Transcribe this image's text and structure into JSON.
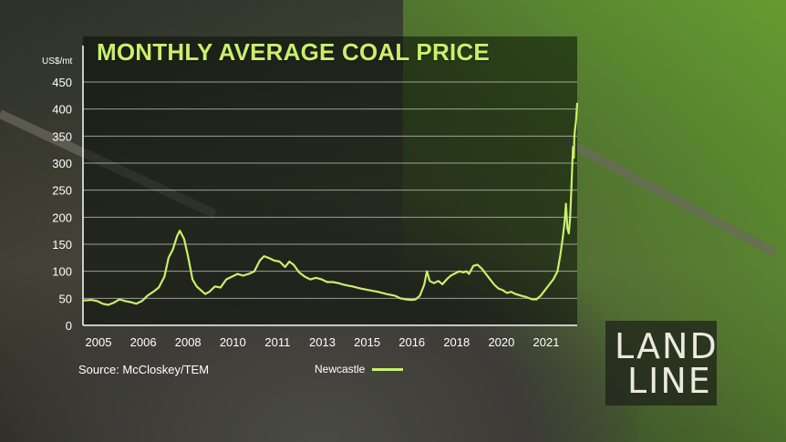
{
  "chart_data": {
    "type": "line",
    "title": "MONTHLY AVERAGE COAL PRICE",
    "ylabel": "US$/mt",
    "xlabel": "",
    "ylim": [
      0,
      450
    ],
    "yticks": [
      0,
      50,
      100,
      150,
      200,
      250,
      300,
      350,
      400,
      450
    ],
    "xlim": [
      2004.7,
      2022.3
    ],
    "xticks": [
      "2005",
      "2006",
      "2008",
      "2010",
      "2011",
      "2013",
      "2015",
      "2016",
      "2018",
      "2020",
      "2021"
    ],
    "grid": true,
    "legend_position": "bottom",
    "series": [
      {
        "name": "Newcastle",
        "color": "#c9ef6c",
        "points": [
          [
            2004.75,
            46
          ],
          [
            2005.0,
            47
          ],
          [
            2005.2,
            45
          ],
          [
            2005.4,
            40
          ],
          [
            2005.6,
            38
          ],
          [
            2005.8,
            42
          ],
          [
            2006.0,
            48
          ],
          [
            2006.2,
            45
          ],
          [
            2006.4,
            43
          ],
          [
            2006.6,
            40
          ],
          [
            2006.8,
            45
          ],
          [
            2007.0,
            55
          ],
          [
            2007.2,
            62
          ],
          [
            2007.4,
            70
          ],
          [
            2007.6,
            90
          ],
          [
            2007.75,
            125
          ],
          [
            2007.9,
            140
          ],
          [
            2008.05,
            165
          ],
          [
            2008.15,
            175
          ],
          [
            2008.3,
            160
          ],
          [
            2008.45,
            125
          ],
          [
            2008.6,
            85
          ],
          [
            2008.75,
            72
          ],
          [
            2008.9,
            65
          ],
          [
            2009.05,
            58
          ],
          [
            2009.2,
            62
          ],
          [
            2009.4,
            72
          ],
          [
            2009.6,
            70
          ],
          [
            2009.8,
            85
          ],
          [
            2010.0,
            90
          ],
          [
            2010.2,
            95
          ],
          [
            2010.4,
            92
          ],
          [
            2010.6,
            95
          ],
          [
            2010.8,
            100
          ],
          [
            2011.0,
            120
          ],
          [
            2011.15,
            128
          ],
          [
            2011.3,
            125
          ],
          [
            2011.5,
            120
          ],
          [
            2011.7,
            118
          ],
          [
            2011.9,
            108
          ],
          [
            2012.05,
            118
          ],
          [
            2012.2,
            112
          ],
          [
            2012.4,
            98
          ],
          [
            2012.6,
            90
          ],
          [
            2012.8,
            85
          ],
          [
            2013.0,
            88
          ],
          [
            2013.2,
            85
          ],
          [
            2013.4,
            80
          ],
          [
            2013.6,
            80
          ],
          [
            2013.8,
            78
          ],
          [
            2014.0,
            75
          ],
          [
            2014.3,
            72
          ],
          [
            2014.6,
            68
          ],
          [
            2014.9,
            65
          ],
          [
            2015.2,
            62
          ],
          [
            2015.5,
            58
          ],
          [
            2015.8,
            55
          ],
          [
            2016.0,
            50
          ],
          [
            2016.2,
            48
          ],
          [
            2016.4,
            47
          ],
          [
            2016.55,
            48
          ],
          [
            2016.7,
            55
          ],
          [
            2016.85,
            75
          ],
          [
            2016.95,
            100
          ],
          [
            2017.05,
            82
          ],
          [
            2017.2,
            78
          ],
          [
            2017.35,
            82
          ],
          [
            2017.5,
            76
          ],
          [
            2017.65,
            85
          ],
          [
            2017.8,
            92
          ],
          [
            2017.95,
            96
          ],
          [
            2018.1,
            100
          ],
          [
            2018.25,
            98
          ],
          [
            2018.35,
            100
          ],
          [
            2018.45,
            95
          ],
          [
            2018.6,
            110
          ],
          [
            2018.75,
            112
          ],
          [
            2018.9,
            105
          ],
          [
            2019.05,
            95
          ],
          [
            2019.2,
            85
          ],
          [
            2019.35,
            75
          ],
          [
            2019.5,
            68
          ],
          [
            2019.65,
            65
          ],
          [
            2019.8,
            60
          ],
          [
            2019.95,
            62
          ],
          [
            2020.1,
            58
          ],
          [
            2020.3,
            55
          ],
          [
            2020.5,
            52
          ],
          [
            2020.7,
            48
          ],
          [
            2020.85,
            48
          ],
          [
            2021.0,
            55
          ],
          [
            2021.15,
            65
          ],
          [
            2021.3,
            75
          ],
          [
            2021.45,
            85
          ],
          [
            2021.6,
            100
          ],
          [
            2021.7,
            130
          ],
          [
            2021.78,
            160
          ],
          [
            2021.85,
            190
          ],
          [
            2021.9,
            225
          ],
          [
            2021.95,
            180
          ],
          [
            2022.0,
            170
          ],
          [
            2022.05,
            200
          ],
          [
            2022.1,
            260
          ],
          [
            2022.15,
            330
          ],
          [
            2022.18,
            310
          ],
          [
            2022.2,
            350
          ],
          [
            2022.23,
            365
          ],
          [
            2022.26,
            380
          ],
          [
            2022.3,
            410
          ]
        ]
      }
    ]
  },
  "source": "Source: McCloskey/TEM",
  "legend": {
    "label": "Newcastle"
  },
  "logo": {
    "line1": "LAND",
    "line2": "LINE"
  }
}
